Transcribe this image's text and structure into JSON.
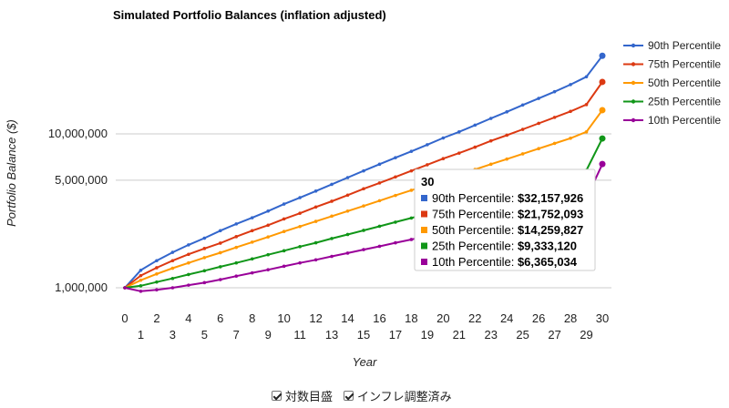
{
  "chart_data": {
    "type": "line",
    "title": "Simulated Portfolio Balances (inflation adjusted)",
    "xlabel": "Year",
    "ylabel": "Portfolio Balance ($)",
    "y_scale": "log",
    "ylim": [
      1000000,
      35000000
    ],
    "xlim": [
      0,
      30
    ],
    "y_ticks": [
      1000000,
      5000000,
      10000000
    ],
    "y_tick_labels": [
      "1,000,000",
      "5,000,000",
      "10,000,000"
    ],
    "x_ticks_upper": [
      0,
      2,
      4,
      6,
      8,
      10,
      12,
      14,
      16,
      18,
      20,
      22,
      24,
      26,
      28,
      30
    ],
    "x_ticks_lower": [
      1,
      3,
      5,
      7,
      9,
      11,
      13,
      15,
      17,
      19,
      21,
      23,
      25,
      27,
      29
    ],
    "grid": "horizontal",
    "legend_position": "right",
    "x": [
      0,
      1,
      2,
      3,
      4,
      5,
      6,
      7,
      8,
      9,
      10,
      11,
      12,
      13,
      14,
      15,
      16,
      17,
      18,
      19,
      20,
      21,
      22,
      23,
      24,
      25,
      26,
      27,
      28,
      29,
      30
    ],
    "series": [
      {
        "name": "90th Percentile",
        "color": "#3366cc",
        "values": [
          1000000,
          1300000,
          1500000,
          1700000,
          1900000,
          2100000,
          2350000,
          2600000,
          2850000,
          3150000,
          3500000,
          3850000,
          4250000,
          4700000,
          5200000,
          5750000,
          6350000,
          7000000,
          7700000,
          8500000,
          9400000,
          10300000,
          11400000,
          12600000,
          13900000,
          15400000,
          17000000,
          18800000,
          20900000,
          23500000,
          32157926
        ]
      },
      {
        "name": "75th Percentile",
        "color": "#dc3912",
        "values": [
          1000000,
          1200000,
          1350000,
          1500000,
          1650000,
          1800000,
          1950000,
          2150000,
          2350000,
          2550000,
          2800000,
          3050000,
          3350000,
          3650000,
          4000000,
          4400000,
          4800000,
          5250000,
          5750000,
          6300000,
          6900000,
          7500000,
          8200000,
          9000000,
          9800000,
          10700000,
          11700000,
          12800000,
          14000000,
          15500000,
          21752093
        ]
      },
      {
        "name": "50th Percentile",
        "color": "#ff9900",
        "values": [
          1000000,
          1120000,
          1230000,
          1340000,
          1450000,
          1570000,
          1690000,
          1830000,
          1980000,
          2140000,
          2320000,
          2500000,
          2700000,
          2920000,
          3150000,
          3400000,
          3680000,
          3980000,
          4300000,
          4650000,
          5020000,
          5430000,
          5870000,
          6350000,
          6860000,
          7420000,
          8020000,
          8670000,
          9370000,
          10300000,
          14259827
        ]
      },
      {
        "name": "25th Percentile",
        "color": "#109618",
        "values": [
          1000000,
          1030000,
          1090000,
          1150000,
          1220000,
          1290000,
          1370000,
          1450000,
          1540000,
          1640000,
          1740000,
          1850000,
          1960000,
          2090000,
          2220000,
          2360000,
          2510000,
          2670000,
          2840000,
          3020000,
          3220000,
          3430000,
          3650000,
          3890000,
          4140000,
          4410000,
          4700000,
          5010000,
          5340000,
          5800000,
          9333120
        ]
      },
      {
        "name": "10th Percentile",
        "color": "#990099",
        "values": [
          1000000,
          950000,
          970000,
          1000000,
          1040000,
          1080000,
          1130000,
          1190000,
          1250000,
          1310000,
          1380000,
          1450000,
          1520000,
          1600000,
          1680000,
          1770000,
          1860000,
          1960000,
          2060000,
          2170000,
          2290000,
          2410000,
          2540000,
          2680000,
          2820000,
          2970000,
          3130000,
          3300000,
          3480000,
          3800000,
          6365034
        ]
      }
    ]
  },
  "tooltip": {
    "title": "30",
    "rows": [
      {
        "label": "90th Percentile: ",
        "value": "$32,157,926",
        "color": "#3366cc"
      },
      {
        "label": "75th Percentile: ",
        "value": "$21,752,093",
        "color": "#dc3912"
      },
      {
        "label": "50th Percentile: ",
        "value": "$14,259,827",
        "color": "#ff9900"
      },
      {
        "label": "25th Percentile: ",
        "value": "$9,333,120",
        "color": "#109618"
      },
      {
        "label": "10th Percentile: ",
        "value": "$6,365,034",
        "color": "#990099"
      }
    ]
  },
  "controls": {
    "log_scale_label": "対数目盛",
    "log_scale_checked": true,
    "inflation_label": "インフレ調整済み",
    "inflation_checked": true
  }
}
